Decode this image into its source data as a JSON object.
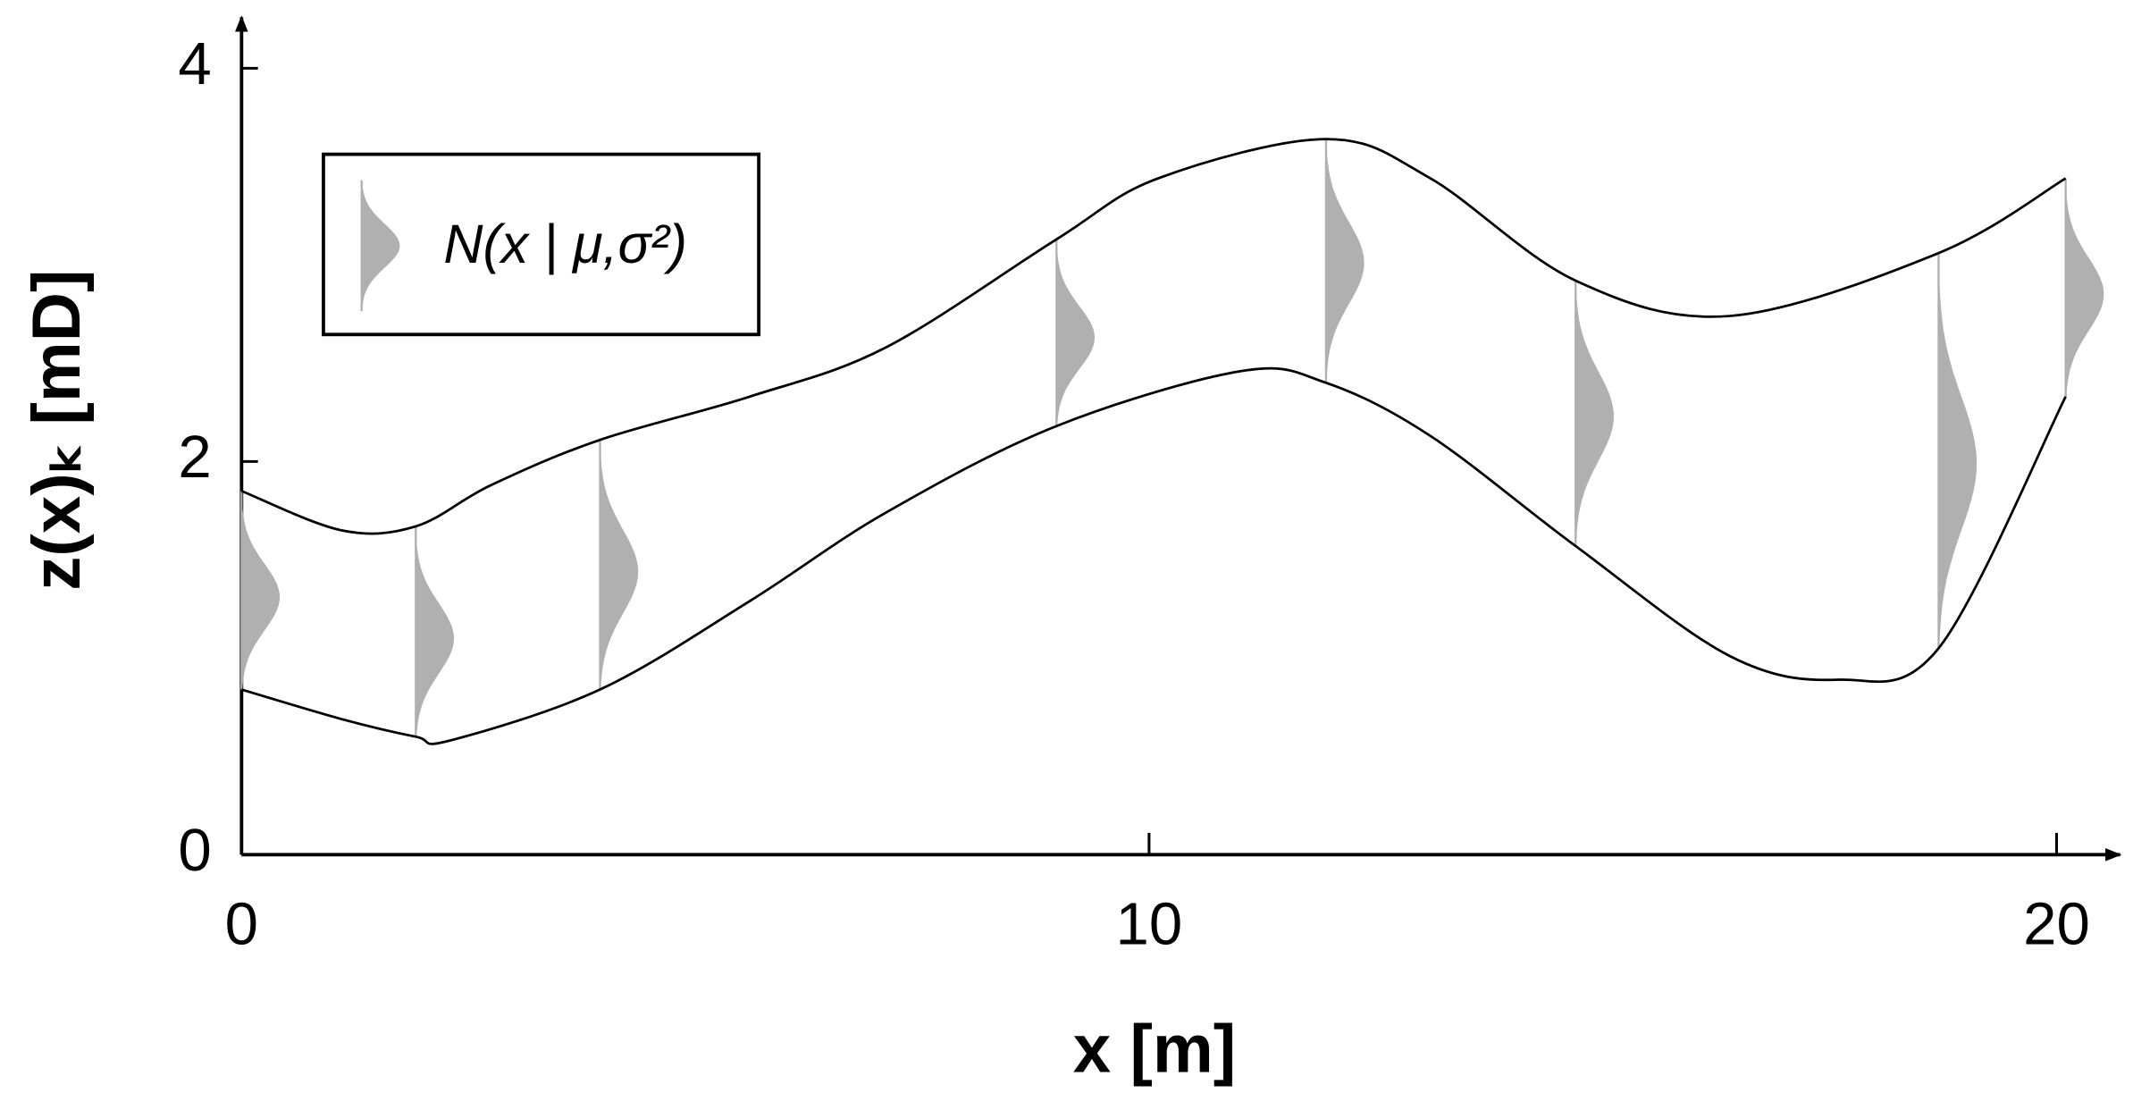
{
  "chart_data": {
    "type": "line",
    "xlabel": "x [m]",
    "ylabel": "z(x)ₖ [mD]",
    "legend_label": "N(x | μ,σ²)",
    "legend_position": "upper left",
    "xlim": [
      0,
      20.7
    ],
    "xticks": [
      0,
      10,
      20
    ],
    "ylim": [
      0,
      4.26
    ],
    "yticks": [
      0,
      2,
      4
    ],
    "series": [
      {
        "name": "upper",
        "color": "#000000",
        "x": [
          0,
          1.1,
          1.92,
          2.75,
          3.95,
          5.6,
          7.1,
          8.98,
          10.1,
          11.95,
          13.1,
          14.7,
          16.4,
          18.7,
          20.1
        ],
        "values": [
          1.85,
          1.65,
          1.67,
          1.88,
          2.11,
          2.33,
          2.58,
          3.13,
          3.44,
          3.64,
          3.44,
          2.92,
          2.74,
          3.06,
          3.44
        ]
      },
      {
        "name": "lower",
        "color": "#000000",
        "x": [
          0,
          1.1,
          1.92,
          2.29,
          3.95,
          5.6,
          7.1,
          8.98,
          11.02,
          11.95,
          13.1,
          14.7,
          16.4,
          17.6,
          18.7,
          20.1
        ],
        "values": [
          0.84,
          0.69,
          0.6,
          0.58,
          0.84,
          1.29,
          1.74,
          2.18,
          2.46,
          2.4,
          2.13,
          1.57,
          1.01,
          0.89,
          1.05,
          2.33
        ]
      }
    ],
    "density_color": "#b0b0b0",
    "densities": [
      {
        "x": 0,
        "mean": 1.31,
        "low": 0.84,
        "high": 1.85
      },
      {
        "x": 1.92,
        "mean": 1.1,
        "low": 0.6,
        "high": 1.67
      },
      {
        "x": 3.95,
        "mean": 1.44,
        "low": 0.84,
        "high": 2.11
      },
      {
        "x": 8.98,
        "mean": 2.63,
        "low": 2.18,
        "high": 3.13
      },
      {
        "x": 11.95,
        "mean": 3.01,
        "low": 2.4,
        "high": 3.64
      },
      {
        "x": 14.7,
        "mean": 2.23,
        "low": 1.57,
        "high": 2.92
      },
      {
        "x": 18.7,
        "mean": 1.99,
        "low": 1.05,
        "high": 3.06
      },
      {
        "x": 20.1,
        "mean": 2.85,
        "low": 2.33,
        "high": 3.44
      }
    ]
  }
}
